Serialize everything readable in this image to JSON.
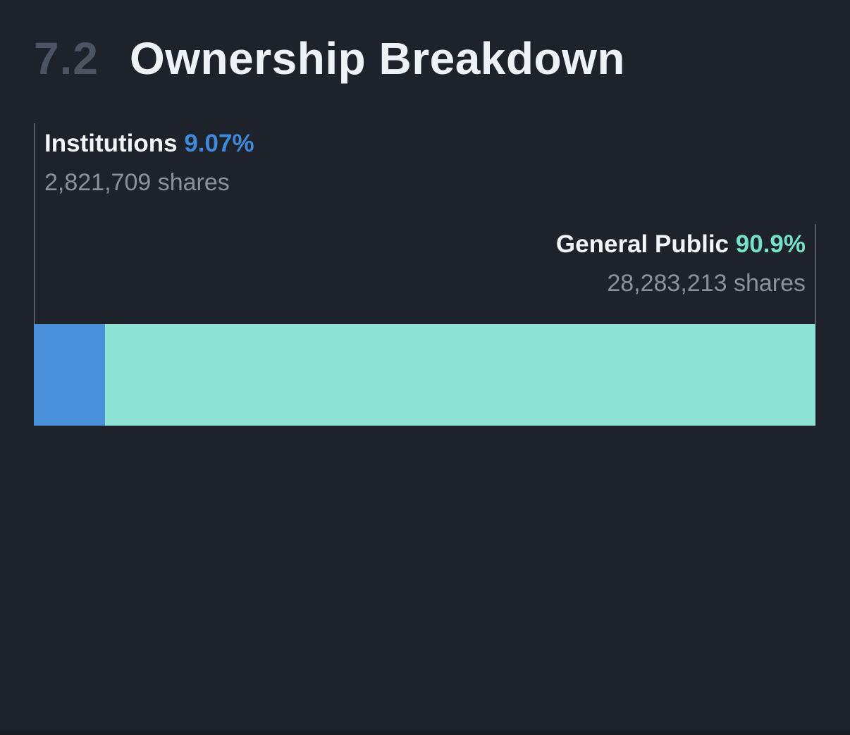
{
  "section": {
    "number": "7.2",
    "title": "Ownership Breakdown"
  },
  "colors": {
    "background": "#1e222b",
    "section_number_muted": "#4c5362",
    "text_primary": "#f2f4f7",
    "text_secondary": "#8b919d",
    "callout_line": "#565d6a",
    "institutions_bar": "#4b90da",
    "institutions_percent_text": "#3f88da",
    "general_public_bar": "#8ee4d4",
    "general_public_percent_text": "#77e0ca",
    "bottom_strip": "#181b22"
  },
  "chart_data": {
    "type": "bar",
    "title": "Ownership Breakdown",
    "orientation": "horizontal-stacked",
    "legend_position": "callout-labels",
    "grid": false,
    "series": [
      {
        "name": "Institutions",
        "percent": 9.07,
        "percent_label": "9.07%",
        "shares": 2821709,
        "shares_label": "2,821,709 shares",
        "color": "#4b90da"
      },
      {
        "name": "General Public",
        "percent": 90.9,
        "percent_label": "90.9%",
        "shares": 28283213,
        "shares_label": "28,283,213 shares",
        "color": "#8ee4d4"
      }
    ]
  }
}
